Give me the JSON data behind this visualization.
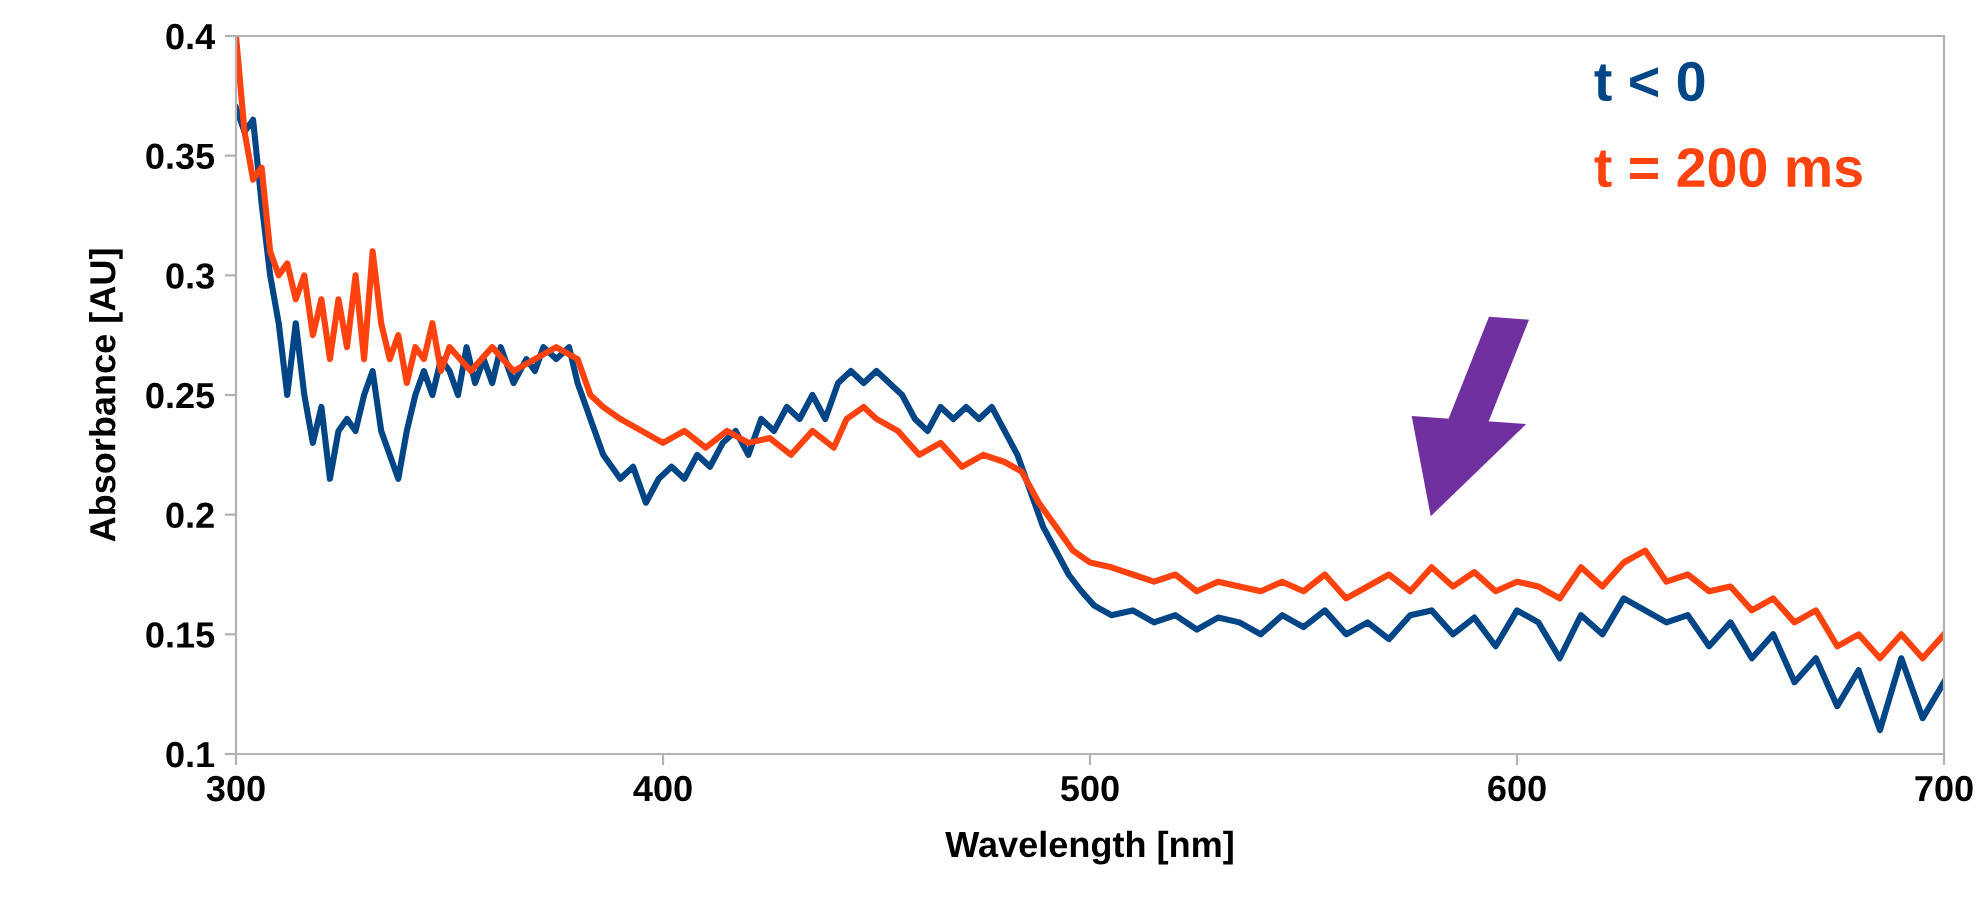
{
  "chart_data": {
    "type": "line",
    "xlabel": "Wavelength [nm]",
    "ylabel": "Absorbance [AU]",
    "xlim": [
      300,
      700
    ],
    "xticks": [
      300,
      400,
      500,
      600,
      700
    ],
    "ylim": [
      0.1,
      0.4
    ],
    "yticks": [
      0.1,
      0.15,
      0.2,
      0.25,
      0.3,
      0.35,
      0.4
    ],
    "grid": false,
    "legend": "top right",
    "series": [
      {
        "name": "t < 0",
        "color": "#004586",
        "x": [
          300,
          302,
          304,
          306,
          308,
          310,
          312,
          314,
          316,
          318,
          320,
          322,
          324,
          326,
          328,
          330,
          332,
          334,
          336,
          338,
          340,
          342,
          344,
          346,
          348,
          350,
          352,
          354,
          356,
          358,
          360,
          362,
          365,
          368,
          370,
          372,
          375,
          378,
          380,
          383,
          386,
          390,
          393,
          396,
          399,
          402,
          405,
          408,
          411,
          414,
          417,
          420,
          423,
          426,
          429,
          432,
          435,
          438,
          441,
          444,
          447,
          450,
          453,
          456,
          459,
          462,
          465,
          468,
          471,
          474,
          477,
          480,
          483,
          486,
          489,
          492,
          495,
          498,
          501,
          505,
          510,
          515,
          520,
          525,
          530,
          535,
          540,
          545,
          550,
          555,
          560,
          565,
          570,
          575,
          580,
          585,
          590,
          595,
          600,
          605,
          610,
          615,
          620,
          625,
          630,
          635,
          640,
          645,
          650,
          655,
          660,
          665,
          670,
          675,
          680,
          685,
          690,
          695,
          700
        ],
        "values": [
          0.37,
          0.36,
          0.365,
          0.33,
          0.3,
          0.28,
          0.25,
          0.28,
          0.25,
          0.23,
          0.245,
          0.215,
          0.235,
          0.24,
          0.235,
          0.25,
          0.26,
          0.235,
          0.225,
          0.215,
          0.235,
          0.25,
          0.26,
          0.25,
          0.265,
          0.26,
          0.25,
          0.27,
          0.255,
          0.265,
          0.255,
          0.27,
          0.255,
          0.265,
          0.26,
          0.27,
          0.265,
          0.27,
          0.255,
          0.24,
          0.225,
          0.215,
          0.22,
          0.205,
          0.215,
          0.22,
          0.215,
          0.225,
          0.22,
          0.23,
          0.235,
          0.225,
          0.24,
          0.235,
          0.245,
          0.24,
          0.25,
          0.24,
          0.255,
          0.26,
          0.255,
          0.26,
          0.255,
          0.25,
          0.24,
          0.235,
          0.245,
          0.24,
          0.245,
          0.24,
          0.245,
          0.235,
          0.225,
          0.21,
          0.195,
          0.185,
          0.175,
          0.168,
          0.162,
          0.158,
          0.16,
          0.155,
          0.158,
          0.152,
          0.157,
          0.155,
          0.15,
          0.158,
          0.153,
          0.16,
          0.15,
          0.155,
          0.148,
          0.158,
          0.16,
          0.15,
          0.157,
          0.145,
          0.16,
          0.155,
          0.14,
          0.158,
          0.15,
          0.165,
          0.16,
          0.155,
          0.158,
          0.145,
          0.155,
          0.14,
          0.15,
          0.13,
          0.14,
          0.12,
          0.135,
          0.11,
          0.14,
          0.115,
          0.13
        ]
      },
      {
        "name": "t = 200 ms",
        "color": "#ff420e",
        "x": [
          300,
          302,
          304,
          306,
          308,
          310,
          312,
          314,
          316,
          318,
          320,
          322,
          324,
          326,
          328,
          330,
          332,
          334,
          336,
          338,
          340,
          342,
          344,
          346,
          348,
          350,
          355,
          360,
          365,
          370,
          375,
          380,
          383,
          386,
          390,
          395,
          400,
          405,
          410,
          415,
          420,
          425,
          430,
          435,
          440,
          443,
          447,
          450,
          455,
          460,
          465,
          470,
          475,
          480,
          484,
          488,
          492,
          496,
          500,
          505,
          510,
          515,
          520,
          525,
          530,
          535,
          540,
          545,
          550,
          555,
          560,
          565,
          570,
          575,
          580,
          585,
          590,
          595,
          600,
          605,
          610,
          615,
          620,
          625,
          630,
          635,
          640,
          645,
          650,
          655,
          660,
          665,
          670,
          675,
          680,
          685,
          690,
          695,
          700
        ],
        "values": [
          0.4,
          0.36,
          0.34,
          0.345,
          0.31,
          0.3,
          0.305,
          0.29,
          0.3,
          0.275,
          0.29,
          0.265,
          0.29,
          0.27,
          0.3,
          0.265,
          0.31,
          0.28,
          0.265,
          0.275,
          0.255,
          0.27,
          0.265,
          0.28,
          0.26,
          0.27,
          0.26,
          0.27,
          0.26,
          0.265,
          0.27,
          0.265,
          0.25,
          0.245,
          0.24,
          0.235,
          0.23,
          0.235,
          0.228,
          0.235,
          0.23,
          0.232,
          0.225,
          0.235,
          0.228,
          0.24,
          0.245,
          0.24,
          0.235,
          0.225,
          0.23,
          0.22,
          0.225,
          0.222,
          0.218,
          0.205,
          0.195,
          0.185,
          0.18,
          0.178,
          0.175,
          0.172,
          0.175,
          0.168,
          0.172,
          0.17,
          0.168,
          0.172,
          0.168,
          0.175,
          0.165,
          0.17,
          0.175,
          0.168,
          0.178,
          0.17,
          0.176,
          0.168,
          0.172,
          0.17,
          0.165,
          0.178,
          0.17,
          0.18,
          0.185,
          0.172,
          0.175,
          0.168,
          0.17,
          0.16,
          0.165,
          0.155,
          0.16,
          0.145,
          0.15,
          0.14,
          0.15,
          0.14,
          0.15
        ]
      }
    ]
  }
}
